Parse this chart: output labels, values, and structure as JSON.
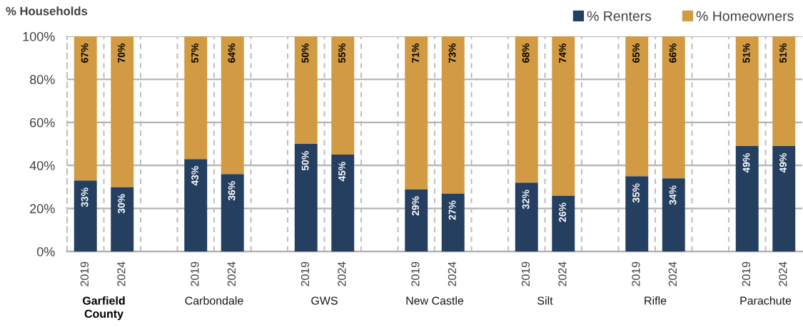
{
  "chart_data": {
    "type": "bar",
    "stacked": true,
    "ylabel": "% Households",
    "categories": [
      "2019",
      "2024",
      null,
      "2019",
      "2024",
      null,
      "2019",
      "2024",
      null,
      "2019",
      "2024",
      null,
      "2019",
      "2024",
      null,
      "2019",
      "2024",
      null,
      "2019",
      "2024"
    ],
    "series": [
      {
        "name": "% Renters",
        "color": "#243f60",
        "values": [
          33,
          30,
          null,
          43,
          36,
          null,
          50,
          45,
          null,
          29,
          27,
          null,
          32,
          26,
          null,
          35,
          34,
          null,
          49,
          49
        ],
        "value_labels": [
          "33%",
          "30%",
          null,
          "43%",
          "36%",
          null,
          "50%",
          "45%",
          null,
          "29%",
          "27%",
          null,
          "32%",
          "26%",
          null,
          "35%",
          "34%",
          null,
          "49%",
          "49%"
        ]
      },
      {
        "name": "% Homeowners",
        "color": "#d29a42",
        "values": [
          67,
          70,
          null,
          57,
          64,
          null,
          50,
          55,
          null,
          71,
          73,
          null,
          68,
          74,
          null,
          65,
          66,
          null,
          51,
          51
        ],
        "value_labels": [
          "67%",
          "70%",
          null,
          "57%",
          "64%",
          null,
          "50%",
          "55%",
          null,
          "71%",
          "73%",
          null,
          "68%",
          "74%",
          null,
          "65%",
          "66%",
          null,
          "51%",
          "51%"
        ]
      }
    ],
    "ylim": [
      0,
      100
    ],
    "yticks": [
      {
        "value": 0,
        "label": "0%"
      },
      {
        "value": 20,
        "label": "20%"
      },
      {
        "value": 40,
        "label": "40%"
      },
      {
        "value": 60,
        "label": "60%"
      },
      {
        "value": 80,
        "label": "80%"
      },
      {
        "value": 100,
        "label": "100%"
      }
    ],
    "grid": true,
    "legend": "top right",
    "annotations": [
      "Garfield\nCounty",
      "Carbondale",
      "GWS",
      "New Castle",
      "Silt",
      "Rifle",
      "Parachute"
    ]
  }
}
